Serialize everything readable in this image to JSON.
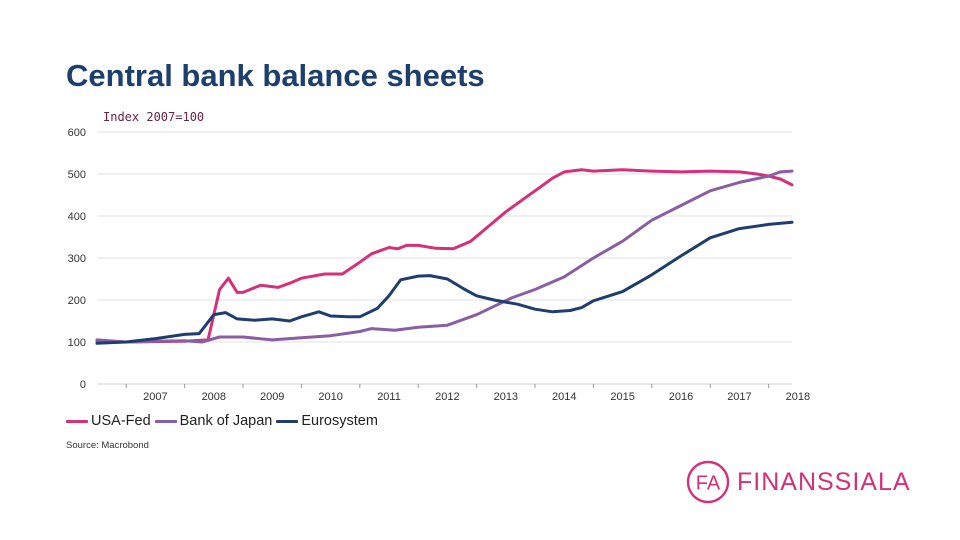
{
  "slide": {
    "title": "Central bank balance sheets",
    "source": "Source: Macrobond"
  },
  "brand": {
    "logo_text": "FA",
    "name": "FINANSSIALA",
    "color": "#d4317a"
  },
  "chart_data": {
    "type": "line",
    "title": "",
    "ylabel": "Index 2007=100",
    "xlabel": "",
    "ylim": [
      0,
      600
    ],
    "yticks": [
      0,
      100,
      200,
      300,
      400,
      500,
      600
    ],
    "xlim": [
      2006.5,
      2018.4
    ],
    "xticks": [
      "2007",
      "2008",
      "2009",
      "2010",
      "2011",
      "2012",
      "2013",
      "2014",
      "2015",
      "2016",
      "2017",
      "2018"
    ],
    "grid": true,
    "legend": "bottom",
    "series": [
      {
        "name": "USA-Fed",
        "color": "#d4317a",
        "x": [
          2006.5,
          2007.0,
          2007.5,
          2008.0,
          2008.4,
          2008.6,
          2008.75,
          2008.9,
          2009.0,
          2009.3,
          2009.6,
          2009.8,
          2010.0,
          2010.4,
          2010.7,
          2011.0,
          2011.2,
          2011.5,
          2011.65,
          2011.8,
          2012.0,
          2012.3,
          2012.6,
          2012.9,
          2013.2,
          2013.5,
          2013.8,
          2014.1,
          2014.3,
          2014.5,
          2014.8,
          2015.0,
          2015.5,
          2016.0,
          2016.5,
          2017.0,
          2017.5,
          2017.8,
          2018.0,
          2018.2,
          2018.4
        ],
        "y": [
          102,
          100,
          101,
          102,
          105,
          225,
          252,
          218,
          218,
          235,
          230,
          240,
          252,
          262,
          262,
          290,
          310,
          325,
          322,
          330,
          330,
          323,
          322,
          340,
          375,
          410,
          440,
          470,
          490,
          505,
          510,
          507,
          510,
          507,
          505,
          507,
          505,
          500,
          495,
          488,
          474
        ]
      },
      {
        "name": "Bank of Japan",
        "color": "#8a5ea3",
        "x": [
          2006.5,
          2007.0,
          2007.5,
          2008.0,
          2008.3,
          2008.6,
          2009.0,
          2009.5,
          2010.0,
          2010.5,
          2011.0,
          2011.2,
          2011.6,
          2012.0,
          2012.5,
          2013.0,
          2013.3,
          2013.6,
          2014.0,
          2014.5,
          2015.0,
          2015.5,
          2016.0,
          2016.5,
          2017.0,
          2017.5,
          2018.0,
          2018.2,
          2018.4
        ],
        "y": [
          105,
          100,
          102,
          103,
          100,
          112,
          112,
          105,
          110,
          115,
          125,
          132,
          128,
          135,
          140,
          165,
          185,
          205,
          225,
          255,
          300,
          340,
          390,
          425,
          460,
          480,
          495,
          505,
          507
        ]
      },
      {
        "name": "Eurosystem",
        "color": "#1f3d6e",
        "x": [
          2006.5,
          2007.0,
          2007.5,
          2008.0,
          2008.25,
          2008.5,
          2008.7,
          2008.9,
          2009.2,
          2009.5,
          2009.8,
          2010.0,
          2010.3,
          2010.5,
          2010.8,
          2011.0,
          2011.3,
          2011.5,
          2011.7,
          2012.0,
          2012.2,
          2012.5,
          2012.8,
          2013.0,
          2013.3,
          2013.7,
          2014.0,
          2014.3,
          2014.6,
          2014.8,
          2015.0,
          2015.5,
          2016.0,
          2016.5,
          2017.0,
          2017.5,
          2018.0,
          2018.4
        ],
        "y": [
          97,
          100,
          108,
          118,
          120,
          165,
          170,
          155,
          152,
          155,
          150,
          160,
          172,
          162,
          160,
          160,
          180,
          210,
          248,
          257,
          258,
          250,
          225,
          210,
          200,
          190,
          178,
          172,
          175,
          182,
          198,
          220,
          260,
          305,
          348,
          370,
          380,
          385
        ]
      }
    ]
  }
}
